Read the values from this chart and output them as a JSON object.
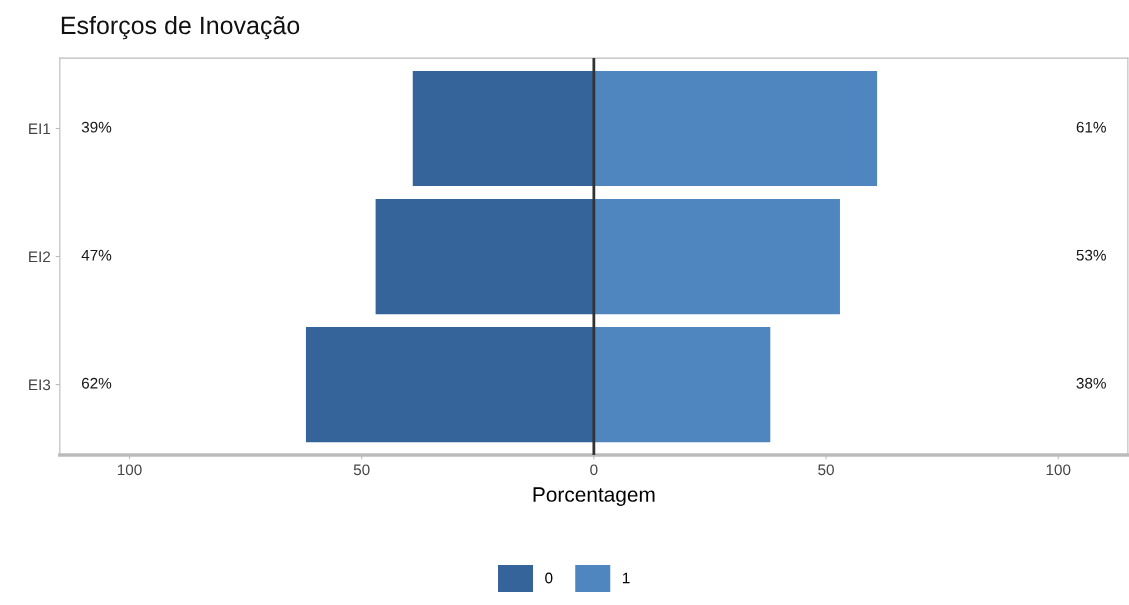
{
  "chart_data": {
    "type": "bar",
    "title": "Esforços de Inovação",
    "xlabel": "Porcentagem",
    "orientation": "horizontal",
    "stacked": true,
    "categories": [
      "EI1",
      "EI2",
      "EI3"
    ],
    "series": [
      {
        "name": "0",
        "color": "#35649a",
        "values": [
          -39,
          -47,
          -62
        ]
      },
      {
        "name": "1",
        "color": "#4f86c0",
        "values": [
          61,
          53,
          38
        ]
      }
    ],
    "annotations": [
      "39%",
      "47%",
      "62%",
      "61%",
      "53%",
      "38%"
    ],
    "xlim": [
      -115,
      115
    ],
    "xticks": [
      {
        "value": -100,
        "label": "100"
      },
      {
        "value": -50,
        "label": "50"
      },
      0,
      50,
      100
    ],
    "ref_lines": [
      {
        "axis": "x",
        "value": 0,
        "color": "#333333"
      }
    ],
    "grid": false,
    "legend": "bottom"
  }
}
